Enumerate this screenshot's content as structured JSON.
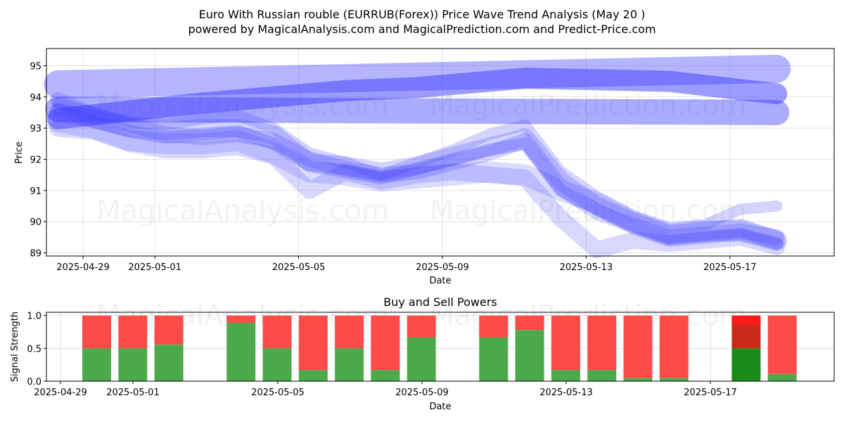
{
  "chart_data": [
    {
      "type": "line",
      "title_line1": "Euro With Russian rouble (EURRUB(Forex)) Price Wave Trend Analysis (May 20 )",
      "title_line2": "powered by MagicalAnalysis.com and MagicalPrediction.com and Predict-Price.com",
      "xlabel": "Date",
      "ylabel": "Price",
      "ylim": [
        88.9,
        95.55
      ],
      "yticks": [
        89,
        90,
        91,
        92,
        93,
        94,
        95
      ],
      "xtick_labels": [
        "2025-04-29",
        "2025-05-01",
        "2025-05-05",
        "2025-05-09",
        "2025-05-13",
        "2025-05-17"
      ],
      "watermarks": [
        "MagicalAnalysis.com",
        "MagicalPrediction.com"
      ],
      "band_color": "#3a3aff",
      "series": [
        {
          "name": "wave-1",
          "x": [
            0,
            1,
            2,
            3,
            4,
            5,
            6,
            7,
            8,
            9,
            10,
            11,
            12,
            13,
            14,
            15,
            16,
            17,
            18,
            19,
            20
          ],
          "values": [
            93.5,
            93.3,
            93.0,
            92.9,
            93.0,
            93.0,
            92.8,
            91.9,
            91.8,
            91.6,
            91.8,
            92.1,
            92.4,
            92.7,
            91.3,
            90.5,
            90.0,
            89.6,
            89.7,
            89.8,
            89.4
          ]
        },
        {
          "name": "wave-2",
          "x": [
            0,
            1,
            2,
            3,
            4,
            5,
            6,
            7,
            8,
            9,
            10,
            11,
            12,
            13,
            14,
            15,
            16,
            17,
            18,
            19,
            20
          ],
          "values": [
            93.9,
            93.4,
            93.1,
            92.8,
            92.7,
            92.8,
            92.6,
            92.0,
            91.7,
            91.5,
            91.6,
            91.9,
            92.2,
            92.6,
            91.1,
            90.3,
            89.9,
            89.5,
            89.6,
            89.7,
            89.5
          ]
        },
        {
          "name": "wave-3",
          "x": [
            0,
            1,
            2,
            3,
            4,
            5,
            6,
            7,
            8,
            9,
            10,
            11,
            12,
            13,
            14,
            15,
            16,
            17,
            18,
            19,
            20
          ],
          "values": [
            93.6,
            93.2,
            92.9,
            92.7,
            92.8,
            92.9,
            92.5,
            91.8,
            91.6,
            91.4,
            91.7,
            92.0,
            92.3,
            92.5,
            91.0,
            90.4,
            89.8,
            89.4,
            89.5,
            89.6,
            89.3
          ]
        },
        {
          "name": "wave-4",
          "x": [
            0,
            1,
            2,
            3,
            4,
            5,
            6,
            7,
            8,
            9,
            10,
            11,
            12,
            13,
            14,
            15,
            16,
            17,
            18,
            19,
            20
          ],
          "values": [
            93.2,
            93.0,
            92.6,
            92.5,
            92.5,
            92.6,
            92.2,
            91.6,
            91.5,
            91.3,
            91.4,
            91.5,
            91.6,
            91.5,
            91.0,
            90.6,
            90.0,
            89.6,
            89.7,
            89.7,
            89.4
          ]
        },
        {
          "name": "wave-5",
          "x": [
            0,
            1,
            2,
            3,
            4,
            5,
            6,
            7,
            8,
            9,
            10,
            11,
            12,
            13,
            14,
            15,
            16,
            17,
            18,
            19,
            20
          ],
          "values": [
            93.8,
            93.5,
            93.2,
            93.1,
            93.3,
            93.4,
            93.0,
            92.2,
            91.9,
            91.5,
            91.9,
            92.3,
            92.8,
            93.1,
            91.6,
            90.8,
            90.2,
            89.8,
            89.9,
            90.4,
            90.5
          ]
        },
        {
          "name": "wave-6",
          "x": [
            0,
            1,
            2,
            3,
            4,
            5,
            6,
            7,
            8,
            9,
            10,
            11,
            12,
            13,
            14,
            15,
            16,
            17,
            18,
            19,
            20
          ],
          "values": [
            93.0,
            92.9,
            92.5,
            92.3,
            92.3,
            92.4,
            92.1,
            91.0,
            91.6,
            91.3,
            91.5,
            91.6,
            91.5,
            91.4,
            90.1,
            89.1,
            89.4,
            89.3,
            89.4,
            89.5,
            89.2
          ]
        },
        {
          "name": "trend-upper",
          "x": [
            0,
            20
          ],
          "values": [
            94.4,
            94.9
          ]
        },
        {
          "name": "trend-lower",
          "x": [
            0,
            20
          ],
          "values": [
            93.6,
            93.5
          ]
        },
        {
          "name": "trend-mid",
          "x": [
            0,
            4,
            8,
            10,
            13,
            17,
            20
          ],
          "values": [
            93.3,
            93.8,
            94.2,
            94.3,
            94.6,
            94.5,
            94.1
          ]
        }
      ]
    },
    {
      "type": "bar",
      "title": "Buy and Sell Powers",
      "xlabel": "Date",
      "ylabel": "Signal Strength",
      "ylim": [
        0,
        1.05
      ],
      "yticks": [
        "0.0",
        "0.5",
        "1.0"
      ],
      "xtick_labels": [
        "2025-04-29",
        "2025-05-01",
        "2025-05-05",
        "2025-05-09",
        "2025-05-13",
        "2025-05-17"
      ],
      "buy_color": "#4caa4c",
      "sell_color": "#ff4a4a",
      "buy_color_last": "#1a8c1a",
      "sell_color_last": "#c92a1a",
      "sell_top_last": "#ff1a1a",
      "days": [
        1,
        2,
        3,
        5,
        6,
        7,
        8,
        9,
        10,
        12,
        13,
        14,
        15,
        16,
        17,
        19,
        20
      ],
      "buy": [
        0.5,
        0.5,
        0.56,
        0.89,
        0.5,
        0.17,
        0.5,
        0.17,
        0.67,
        0.67,
        0.78,
        0.17,
        0.17,
        0.05,
        0.05,
        0.5,
        0.11
      ],
      "sell": [
        0.5,
        0.5,
        0.44,
        0.11,
        0.5,
        0.83,
        0.5,
        0.83,
        0.33,
        0.33,
        0.22,
        0.83,
        0.83,
        0.95,
        0.95,
        0.5,
        0.89
      ]
    }
  ]
}
